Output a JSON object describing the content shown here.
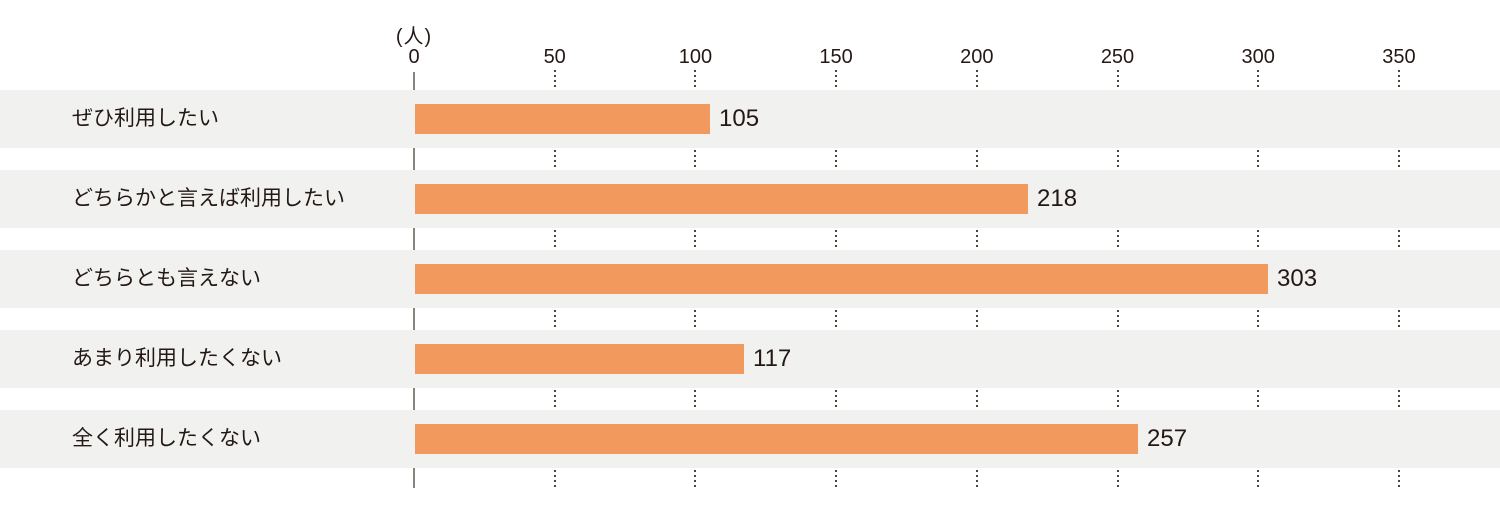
{
  "chart_data": {
    "type": "bar",
    "orientation": "horizontal",
    "title": "",
    "unit_label": "(人)",
    "categories": [
      "ぜひ利用したい",
      "どちらかと言えば利用したい",
      "どちらとも言えない",
      "あまり利用したくない",
      "全く利用したくない"
    ],
    "values": [
      105,
      218,
      303,
      117,
      257
    ],
    "xticks": [
      0,
      50,
      100,
      150,
      200,
      250,
      300,
      350
    ],
    "xlim": [
      0,
      386
    ],
    "xlabel": "(人)",
    "ylabel": "",
    "legend": "none",
    "grid": "dotted-vertical-in-row-gaps",
    "colors": {
      "bar": "#F2995E",
      "row_band": "#F1F1F0",
      "text": "#231815",
      "axis_line": "#8A827C",
      "grid_dots": "#4A4543"
    }
  }
}
